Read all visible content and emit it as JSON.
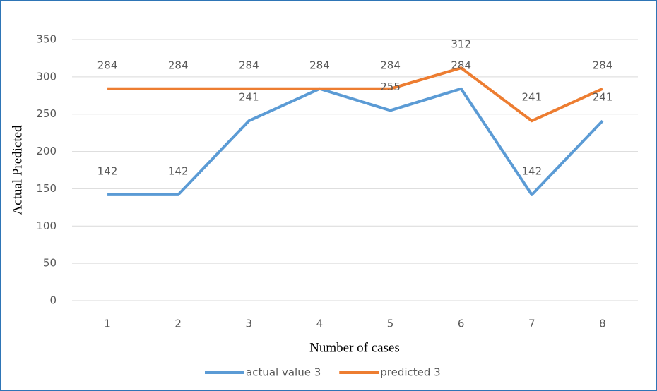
{
  "chart_data": {
    "type": "line",
    "x_label": "Number of cases",
    "y_label": "Actual Predicted",
    "categories": [
      "1",
      "2",
      "3",
      "4",
      "5",
      "6",
      "7",
      "8"
    ],
    "series": [
      {
        "name": "actual value 3",
        "color": "#5b9bd5",
        "values": [
          142,
          142,
          241,
          284,
          255,
          284,
          142,
          241
        ]
      },
      {
        "name": "predicted 3",
        "color": "#ed7d31",
        "values": [
          284,
          284,
          284,
          284,
          284,
          312,
          241,
          284
        ]
      }
    ],
    "ylim": [
      0,
      350
    ],
    "yticks": [
      0,
      50,
      100,
      150,
      200,
      250,
      300,
      350
    ],
    "grid": true,
    "legend": "bottom",
    "data_labels": true
  }
}
